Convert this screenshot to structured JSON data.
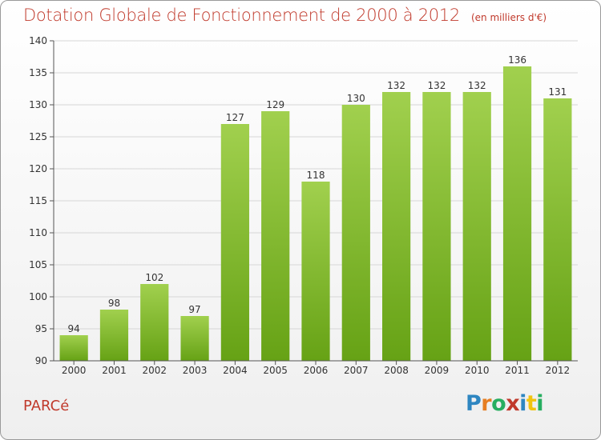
{
  "header": {
    "title": "Dotation Globale de Fonctionnement de 2000 à 2012",
    "unit": "(en milliers d'€)"
  },
  "footer": {
    "commune": "PARCé",
    "logo": "Proxiti"
  },
  "colors": {
    "title": "#c0392b",
    "bar_light": "#a1d04e",
    "bar_dark": "#66a215",
    "grid": "#d6d6d6",
    "axis": "#555555"
  },
  "chart_data": {
    "type": "bar",
    "title": "Dotation Globale de Fonctionnement de 2000 à 2012",
    "subtitle": "(en milliers d'€)",
    "categories": [
      "2000",
      "2001",
      "2002",
      "2003",
      "2004",
      "2005",
      "2006",
      "2007",
      "2008",
      "2009",
      "2010",
      "2011",
      "2012"
    ],
    "values": [
      94,
      98,
      102,
      97,
      127,
      129,
      118,
      130,
      132,
      132,
      132,
      136,
      131
    ],
    "xlabel": "",
    "ylabel": "",
    "ylim": [
      90,
      140
    ],
    "yticks": [
      90,
      95,
      100,
      105,
      110,
      115,
      120,
      125,
      130,
      135,
      140
    ],
    "grid": true,
    "legend": "none"
  }
}
